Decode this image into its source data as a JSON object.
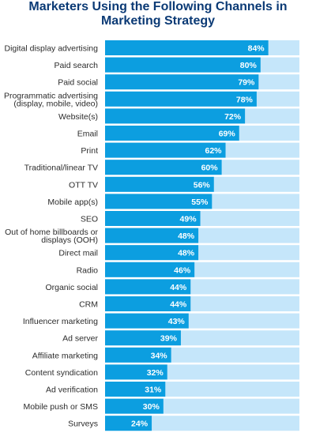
{
  "chart_data": {
    "type": "bar",
    "orientation": "horizontal",
    "title": "Marketers Using the Following Channels in\nMarketing Strategy",
    "categories": [
      "Digital display advertising",
      "Paid search",
      "Paid social",
      "Programmatic advertising\n(display, mobile, video)",
      "Website(s)",
      "Email",
      "Print",
      "Traditional/linear TV",
      "OTT TV",
      "Mobile app(s)",
      "SEO",
      "Out of home billboards or\ndisplays (OOH)",
      "Direct mail",
      "Radio",
      "Organic social",
      "CRM",
      "Influencer marketing",
      "Ad server",
      "Affiliate marketing",
      "Content syndication",
      "Ad verification",
      "Mobile push or SMS",
      "Surveys"
    ],
    "values": [
      84,
      80,
      79,
      78,
      72,
      69,
      62,
      60,
      56,
      55,
      49,
      48,
      48,
      46,
      44,
      44,
      43,
      39,
      34,
      32,
      31,
      30,
      24
    ],
    "value_labels": [
      "84%",
      "80%",
      "79%",
      "78%",
      "72%",
      "69%",
      "62%",
      "60%",
      "56%",
      "55%",
      "49%",
      "48%",
      "48%",
      "46%",
      "44%",
      "44%",
      "43%",
      "39%",
      "34%",
      "32%",
      "31%",
      "30%",
      "24%"
    ],
    "xlim": [
      0,
      100
    ],
    "grid": false,
    "colors": {
      "bar": "#0c9ee0",
      "track": "#c5e6fa",
      "title": "#0b3a75",
      "label": "#2c2c2c"
    }
  }
}
